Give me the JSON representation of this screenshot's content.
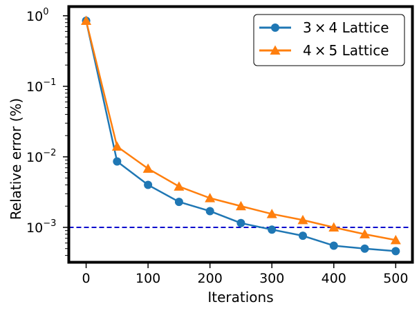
{
  "chart_data": {
    "type": "line",
    "title": "",
    "xlabel": "Iterations",
    "ylabel": "Relative error (%)",
    "yscale": "log",
    "xlim": [
      -28,
      527
    ],
    "ylim": [
      0.00032,
      1.35
    ],
    "x_ticks": [
      0,
      100,
      200,
      300,
      400,
      500
    ],
    "x_tick_labels": [
      "0",
      "100",
      "200",
      "300",
      "400",
      "500"
    ],
    "y_ticks": [
      1,
      0.1,
      0.01,
      0.001
    ],
    "y_tick_labels": [
      {
        "base": "10",
        "exp": "0"
      },
      {
        "base": "10",
        "exp": "−1"
      },
      {
        "base": "10",
        "exp": "−2"
      },
      {
        "base": "10",
        "exp": "−3"
      }
    ],
    "reference_line": {
      "y": 0.001,
      "color": "#0000cc",
      "style": "dashed"
    },
    "legend_position": "top-right",
    "x": [
      0,
      50,
      100,
      150,
      200,
      250,
      300,
      350,
      400,
      450,
      500
    ],
    "series": [
      {
        "name": "3 × 4 Lattice",
        "legend_parts": {
          "a": "3",
          "op": "×",
          "b": "4",
          "suffix": " Lattice"
        },
        "marker": "circle",
        "color": "#1f77b4",
        "values": [
          0.85,
          0.0086,
          0.004,
          0.0023,
          0.0017,
          0.00115,
          0.00093,
          0.00076,
          0.00055,
          0.0005,
          0.00046
        ]
      },
      {
        "name": "4 × 5 Lattice",
        "legend_parts": {
          "a": "4",
          "op": "×",
          "b": "5",
          "suffix": " Lattice"
        },
        "marker": "triangle",
        "color": "#ff7f0e",
        "values": [
          0.85,
          0.014,
          0.0068,
          0.0038,
          0.0026,
          0.002,
          0.00155,
          0.00127,
          0.001,
          0.0008,
          0.00066
        ]
      }
    ]
  }
}
